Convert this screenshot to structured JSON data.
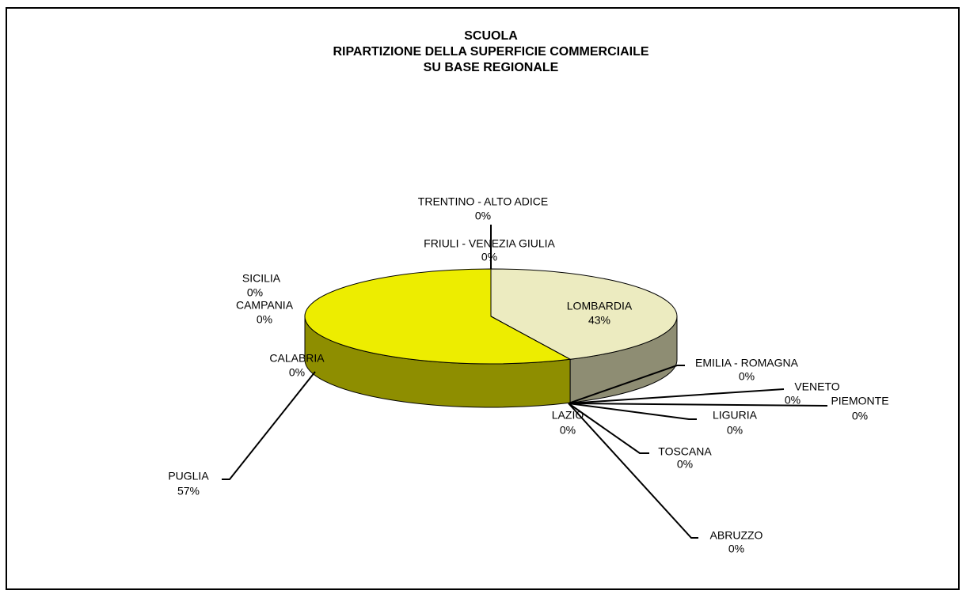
{
  "chart_data": {
    "type": "pie",
    "title": [
      "SCUOLA",
      "RIPARTIZIONE DELLA SUPERFICIE COMMERCIAILE",
      "SU BASE REGIONALE"
    ],
    "categories": [
      "LOMBARDIA",
      "EMILIA - ROMAGNA",
      "VENETO",
      "PIEMONTE",
      "LIGURIA",
      "TOSCANA",
      "ABRUZZO",
      "LAZIO",
      "PUGLIA",
      "CALABRIA",
      "CAMPANIA",
      "SICILIA",
      "FRIULI - VENEZIA GIULIA",
      "TRENTINO - ALTO ADICE"
    ],
    "values": [
      43,
      0,
      0,
      0,
      0,
      0,
      0,
      0,
      57,
      0,
      0,
      0,
      0,
      0
    ],
    "value_labels": [
      "43%",
      "0%",
      "0%",
      "0%",
      "0%",
      "0%",
      "0%",
      "0%",
      "57%",
      "0%",
      "0%",
      "0%",
      "0%",
      "0%"
    ],
    "colors": [
      "#ecebc0",
      "#9999ff",
      "#993366",
      "#ffffcc",
      "#ccffff",
      "#660066",
      "#ff8080",
      "#0066cc",
      "#eded00",
      "#000080",
      "#ff00ff",
      "#ffff00",
      "#00ffff",
      "#800080"
    ]
  }
}
